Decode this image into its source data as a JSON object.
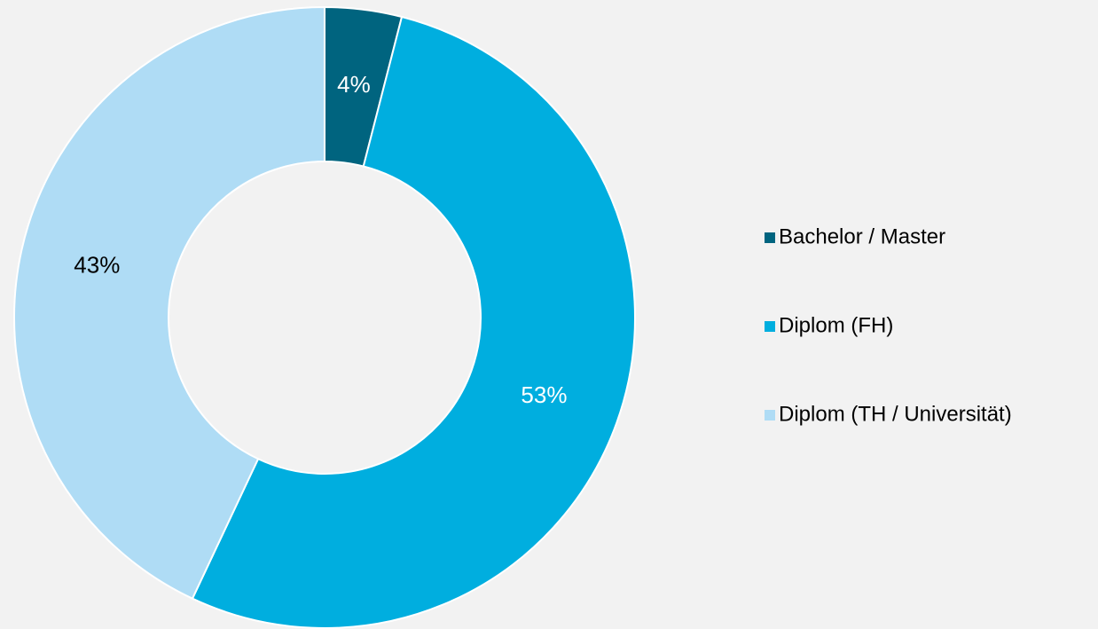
{
  "chart_data": {
    "type": "donut",
    "categories": [
      "Bachelor / Master",
      "Diplom (FH)",
      "Diplom (TH / Universität)"
    ],
    "values": [
      4,
      53,
      43
    ],
    "value_labels": [
      "4%",
      "53%",
      "43%"
    ],
    "colors": [
      "#00647f",
      "#00aedf",
      "#afdcf5"
    ],
    "legend": "right"
  }
}
